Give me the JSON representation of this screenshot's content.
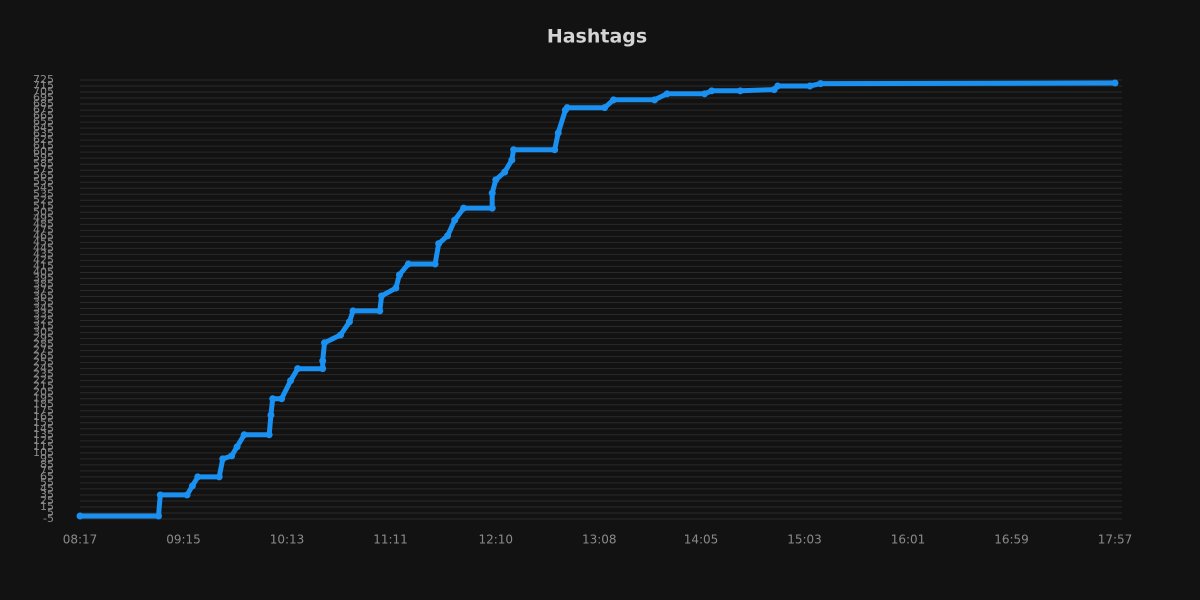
{
  "chart_data": {
    "type": "line",
    "title": "Hashtags",
    "color": "#1a90f0",
    "grid": true,
    "x": [
      "08:17",
      "09:01",
      "09:02",
      "09:17",
      "09:20",
      "09:23",
      "09:35",
      "09:37",
      "09:42",
      "09:45",
      "09:49",
      "10:03",
      "10:04",
      "10:05",
      "10:10",
      "10:15",
      "10:19",
      "10:33",
      "10:33",
      "10:34",
      "10:43",
      "10:48",
      "10:50",
      "11:05",
      "11:06",
      "11:14",
      "11:16",
      "11:21",
      "11:36",
      "11:38",
      "11:43",
      "11:47",
      "11:52",
      "12:08",
      "12:08",
      "12:10",
      "12:15",
      "12:19",
      "12:20",
      "12:43",
      "12:45",
      "12:49",
      "12:50",
      "13:11",
      "13:16",
      "13:39",
      "13:46",
      "14:07",
      "14:11",
      "14:27",
      "14:46",
      "14:48",
      "15:06",
      "15:12",
      "17:57"
    ],
    "values": [
      0,
      0,
      35,
      35,
      50,
      65,
      65,
      95,
      100,
      115,
      135,
      135,
      168,
      195,
      195,
      225,
      245,
      245,
      258,
      288,
      301,
      323,
      341,
      341,
      366,
      379,
      401,
      419,
      419,
      453,
      466,
      492,
      512,
      512,
      537,
      559,
      572,
      592,
      609,
      609,
      637,
      675,
      679,
      679,
      692,
      692,
      702,
      702,
      707,
      707,
      709,
      715,
      715,
      719,
      720
    ],
    "xlim": [
      "08:17",
      "17:57"
    ],
    "xticks": [
      "08:17",
      "09:15",
      "10:13",
      "11:11",
      "12:10",
      "13:08",
      "14:05",
      "15:03",
      "16:01",
      "16:59",
      "17:57"
    ],
    "ylim": [
      -5,
      725
    ],
    "yticks": [
      -5,
      5,
      15,
      25,
      35,
      45,
      55,
      65,
      75,
      85,
      95,
      105,
      115,
      125,
      135,
      145,
      155,
      165,
      175,
      185,
      195,
      205,
      215,
      225,
      235,
      245,
      255,
      265,
      275,
      285,
      295,
      305,
      315,
      325,
      335,
      345,
      355,
      365,
      375,
      385,
      395,
      405,
      415,
      425,
      435,
      445,
      455,
      465,
      475,
      485,
      495,
      505,
      515,
      525,
      535,
      545,
      555,
      565,
      575,
      585,
      595,
      605,
      615,
      625,
      635,
      645,
      655,
      665,
      675,
      685,
      695,
      705,
      715,
      725
    ]
  }
}
